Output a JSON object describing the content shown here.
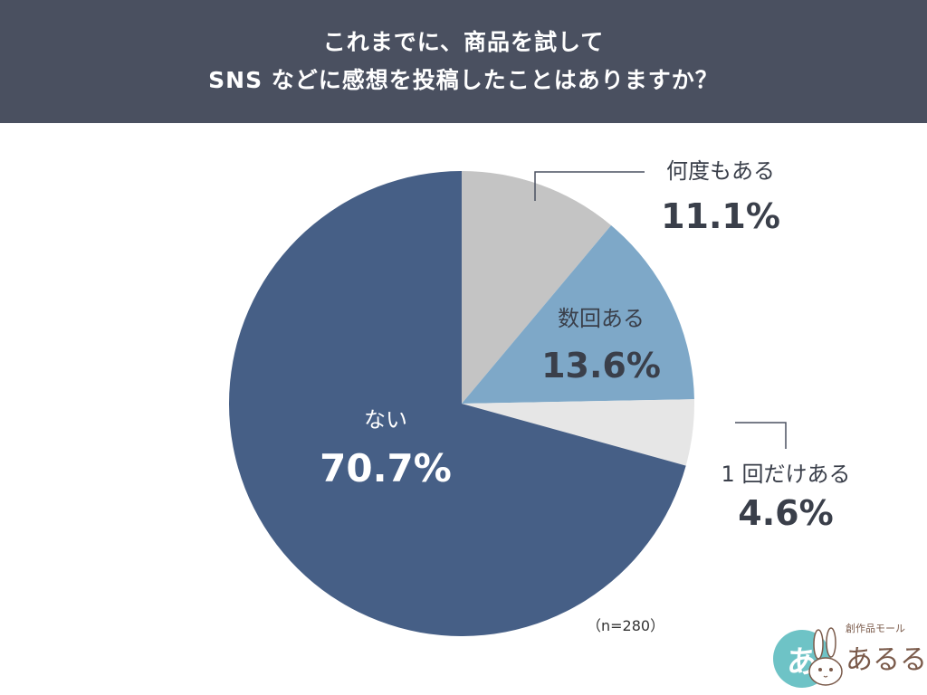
{
  "header": {
    "title_line1": "これまでに、商品を試して",
    "title_line2": "SNS などに感想を投稿したことはありますか？"
  },
  "chart_data": {
    "type": "pie",
    "start_angle_deg": 0,
    "direction": "clockwise",
    "categories": [
      "何度もある",
      "数回ある",
      "1 回だけある",
      "ない"
    ],
    "values": [
      11.1,
      13.6,
      4.6,
      70.7
    ],
    "value_labels": [
      "11.1%",
      "13.6%",
      "4.6%",
      "70.7%"
    ],
    "colors": [
      "#c4c4c4",
      "#7ea8c8",
      "#e6e6e6",
      "#465f86"
    ],
    "label_colors": [
      "#3a3f4a",
      "#3a3f4a",
      "#3a3f4a",
      "#ffffff"
    ],
    "note": "（n=280）"
  },
  "logo": {
    "circle_char": "あ",
    "tagline": "創作品モール",
    "name": "あるる"
  }
}
